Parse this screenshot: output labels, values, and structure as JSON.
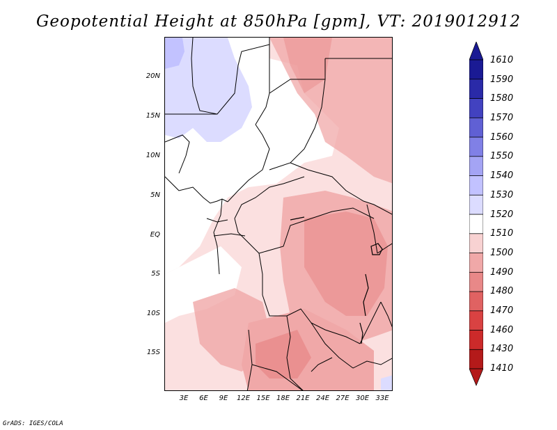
{
  "title": "Geopotential Height at 850hPa [gpm], VT: 2019012912",
  "credit": "GrADS: IGES/COLA",
  "y_axis_labels": [
    "20N",
    "15N",
    "10N",
    "5N",
    "EQ",
    "5S",
    "10S",
    "15S"
  ],
  "x_axis_labels": [
    "3E",
    "6E",
    "9E",
    "12E",
    "15E",
    "18E",
    "21E",
    "24E",
    "27E",
    "30E",
    "33E"
  ],
  "colorbar": {
    "levels": [
      "1410",
      "1430",
      "1460",
      "1470",
      "1480",
      "1490",
      "1500",
      "1510",
      "1520",
      "1530",
      "1540",
      "1550",
      "1560",
      "1570",
      "1580",
      "1590",
      "1610"
    ],
    "colors": [
      "#b41a1a",
      "#cc2a2a",
      "#d94242",
      "#e06262",
      "#e88888",
      "#f0a8a8",
      "#f8d2d2",
      "#ffffff",
      "#dcdcff",
      "#c2c2ff",
      "#a4a4f4",
      "#8080e6",
      "#6060d4",
      "#4242c0",
      "#2a2aa8",
      "#1a1a94"
    ]
  }
}
